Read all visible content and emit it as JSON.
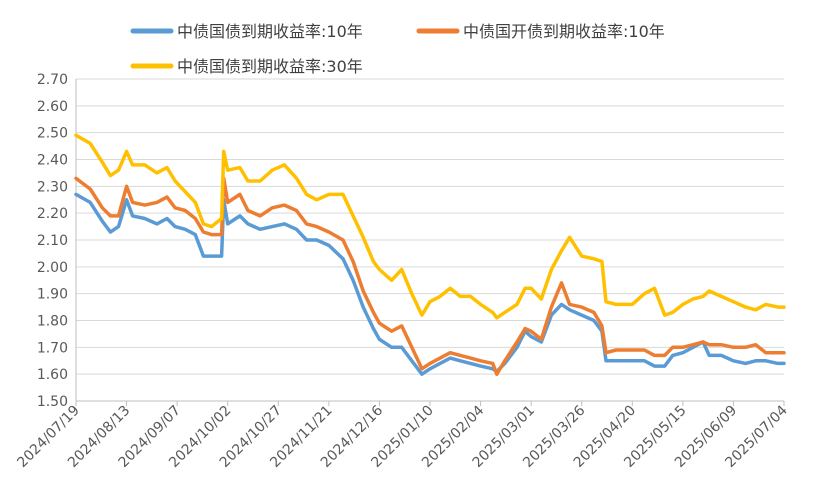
{
  "chart_data": {
    "type": "line",
    "title": "",
    "xlabel": "",
    "ylabel": "",
    "ylim": [
      1.5,
      2.7
    ],
    "yticks": [
      "2.70",
      "2.60",
      "2.50",
      "2.40",
      "2.30",
      "2.20",
      "2.10",
      "2.00",
      "1.90",
      "1.80",
      "1.70",
      "1.60",
      "1.50"
    ],
    "xticks": [
      "2024/07/19",
      "2024/08/13",
      "2024/09/07",
      "2024/10/02",
      "2024/10/27",
      "2024/11/21",
      "2024/12/16",
      "2025/01/10",
      "2025/02/04",
      "2025/03/01",
      "2025/03/26",
      "2025/04/20",
      "2025/05/15",
      "2025/06/09",
      "2025/07/04"
    ],
    "x_start": "2024/07/19",
    "x_end": "2025/07/04",
    "grid": "horizontal",
    "legend_position": "top",
    "series": [
      {
        "name": "中债国债到期收益率:10年",
        "color": "#5B9BD5",
        "points": [
          [
            "2024/07/19",
            2.27
          ],
          [
            "2024/07/26",
            2.24
          ],
          [
            "2024/08/01",
            2.17
          ],
          [
            "2024/08/05",
            2.13
          ],
          [
            "2024/08/09",
            2.15
          ],
          [
            "2024/08/13",
            2.25
          ],
          [
            "2024/08/16",
            2.19
          ],
          [
            "2024/08/22",
            2.18
          ],
          [
            "2024/08/28",
            2.16
          ],
          [
            "2024/09/02",
            2.18
          ],
          [
            "2024/09/06",
            2.15
          ],
          [
            "2024/09/11",
            2.14
          ],
          [
            "2024/09/16",
            2.12
          ],
          [
            "2024/09/20",
            2.04
          ],
          [
            "2024/09/24",
            2.04
          ],
          [
            "2024/09/29",
            2.04
          ],
          [
            "2024/09/30",
            2.25
          ],
          [
            "2024/10/02",
            2.16
          ],
          [
            "2024/10/08",
            2.19
          ],
          [
            "2024/10/12",
            2.16
          ],
          [
            "2024/10/18",
            2.14
          ],
          [
            "2024/10/24",
            2.15
          ],
          [
            "2024/10/30",
            2.16
          ],
          [
            "2024/11/05",
            2.14
          ],
          [
            "2024/11/10",
            2.1
          ],
          [
            "2024/11/15",
            2.1
          ],
          [
            "2024/11/21",
            2.08
          ],
          [
            "2024/11/28",
            2.03
          ],
          [
            "2024/12/03",
            1.95
          ],
          [
            "2024/12/08",
            1.85
          ],
          [
            "2024/12/13",
            1.77
          ],
          [
            "2024/12/16",
            1.73
          ],
          [
            "2024/12/22",
            1.7
          ],
          [
            "2024/12/27",
            1.7
          ],
          [
            "2025/01/01",
            1.65
          ],
          [
            "2025/01/06",
            1.6
          ],
          [
            "2025/01/10",
            1.62
          ],
          [
            "2025/01/15",
            1.64
          ],
          [
            "2025/01/20",
            1.66
          ],
          [
            "2025/01/25",
            1.65
          ],
          [
            "2025/01/30",
            1.64
          ],
          [
            "2025/02/04",
            1.63
          ],
          [
            "2025/02/10",
            1.62
          ],
          [
            "2025/02/12",
            1.61
          ],
          [
            "2025/02/16",
            1.64
          ],
          [
            "2025/02/22",
            1.7
          ],
          [
            "2025/02/26",
            1.76
          ],
          [
            "2025/03/01",
            1.74
          ],
          [
            "2025/03/06",
            1.72
          ],
          [
            "2025/03/11",
            1.82
          ],
          [
            "2025/03/16",
            1.86
          ],
          [
            "2025/03/20",
            1.84
          ],
          [
            "2025/03/26",
            1.82
          ],
          [
            "2025/04/01",
            1.8
          ],
          [
            "2025/04/05",
            1.76
          ],
          [
            "2025/04/07",
            1.65
          ],
          [
            "2025/04/12",
            1.65
          ],
          [
            "2025/04/20",
            1.65
          ],
          [
            "2025/04/26",
            1.65
          ],
          [
            "2025/05/01",
            1.63
          ],
          [
            "2025/05/06",
            1.63
          ],
          [
            "2025/05/10",
            1.67
          ],
          [
            "2025/05/15",
            1.68
          ],
          [
            "2025/05/20",
            1.7
          ],
          [
            "2025/05/25",
            1.72
          ],
          [
            "2025/05/28",
            1.67
          ],
          [
            "2025/06/03",
            1.67
          ],
          [
            "2025/06/09",
            1.65
          ],
          [
            "2025/06/15",
            1.64
          ],
          [
            "2025/06/20",
            1.65
          ],
          [
            "2025/06/25",
            1.65
          ],
          [
            "2025/07/01",
            1.64
          ],
          [
            "2025/07/04",
            1.64
          ]
        ]
      },
      {
        "name": "中债国开债到期收益率:10年",
        "color": "#ED7D31",
        "points": [
          [
            "2024/07/19",
            2.33
          ],
          [
            "2024/07/26",
            2.29
          ],
          [
            "2024/08/01",
            2.22
          ],
          [
            "2024/08/05",
            2.19
          ],
          [
            "2024/08/09",
            2.19
          ],
          [
            "2024/08/13",
            2.3
          ],
          [
            "2024/08/16",
            2.24
          ],
          [
            "2024/08/22",
            2.23
          ],
          [
            "2024/08/28",
            2.24
          ],
          [
            "2024/09/02",
            2.26
          ],
          [
            "2024/09/06",
            2.22
          ],
          [
            "2024/09/11",
            2.21
          ],
          [
            "2024/09/16",
            2.18
          ],
          [
            "2024/09/20",
            2.13
          ],
          [
            "2024/09/24",
            2.12
          ],
          [
            "2024/09/29",
            2.12
          ],
          [
            "2024/09/30",
            2.33
          ],
          [
            "2024/10/02",
            2.24
          ],
          [
            "2024/10/08",
            2.27
          ],
          [
            "2024/10/12",
            2.21
          ],
          [
            "2024/10/18",
            2.19
          ],
          [
            "2024/10/24",
            2.22
          ],
          [
            "2024/10/30",
            2.23
          ],
          [
            "2024/11/05",
            2.21
          ],
          [
            "2024/11/10",
            2.16
          ],
          [
            "2024/11/15",
            2.15
          ],
          [
            "2024/11/21",
            2.13
          ],
          [
            "2024/11/28",
            2.1
          ],
          [
            "2024/12/03",
            2.02
          ],
          [
            "2024/12/08",
            1.91
          ],
          [
            "2024/12/13",
            1.83
          ],
          [
            "2024/12/16",
            1.79
          ],
          [
            "2024/12/22",
            1.76
          ],
          [
            "2024/12/27",
            1.78
          ],
          [
            "2025/01/01",
            1.7
          ],
          [
            "2025/01/06",
            1.62
          ],
          [
            "2025/01/10",
            1.64
          ],
          [
            "2025/01/15",
            1.66
          ],
          [
            "2025/01/20",
            1.68
          ],
          [
            "2025/01/25",
            1.67
          ],
          [
            "2025/01/30",
            1.66
          ],
          [
            "2025/02/04",
            1.65
          ],
          [
            "2025/02/10",
            1.64
          ],
          [
            "2025/02/12",
            1.6
          ],
          [
            "2025/02/16",
            1.65
          ],
          [
            "2025/02/22",
            1.72
          ],
          [
            "2025/02/26",
            1.77
          ],
          [
            "2025/03/01",
            1.76
          ],
          [
            "2025/03/06",
            1.73
          ],
          [
            "2025/03/11",
            1.85
          ],
          [
            "2025/03/16",
            1.94
          ],
          [
            "2025/03/20",
            1.86
          ],
          [
            "2025/03/26",
            1.85
          ],
          [
            "2025/04/01",
            1.83
          ],
          [
            "2025/04/05",
            1.78
          ],
          [
            "2025/04/07",
            1.68
          ],
          [
            "2025/04/12",
            1.69
          ],
          [
            "2025/04/20",
            1.69
          ],
          [
            "2025/04/26",
            1.69
          ],
          [
            "2025/05/01",
            1.67
          ],
          [
            "2025/05/06",
            1.67
          ],
          [
            "2025/05/10",
            1.7
          ],
          [
            "2025/05/15",
            1.7
          ],
          [
            "2025/05/20",
            1.71
          ],
          [
            "2025/05/25",
            1.72
          ],
          [
            "2025/05/28",
            1.71
          ],
          [
            "2025/06/03",
            1.71
          ],
          [
            "2025/06/09",
            1.7
          ],
          [
            "2025/06/15",
            1.7
          ],
          [
            "2025/06/20",
            1.71
          ],
          [
            "2025/06/25",
            1.68
          ],
          [
            "2025/07/01",
            1.68
          ],
          [
            "2025/07/04",
            1.68
          ]
        ]
      },
      {
        "name": "中债国债到期收益率:30年",
        "color": "#FFC000",
        "points": [
          [
            "2024/07/19",
            2.49
          ],
          [
            "2024/07/26",
            2.46
          ],
          [
            "2024/08/01",
            2.39
          ],
          [
            "2024/08/05",
            2.34
          ],
          [
            "2024/08/09",
            2.36
          ],
          [
            "2024/08/13",
            2.43
          ],
          [
            "2024/08/16",
            2.38
          ],
          [
            "2024/08/22",
            2.38
          ],
          [
            "2024/08/28",
            2.35
          ],
          [
            "2024/09/02",
            2.37
          ],
          [
            "2024/09/06",
            2.32
          ],
          [
            "2024/09/11",
            2.28
          ],
          [
            "2024/09/16",
            2.24
          ],
          [
            "2024/09/20",
            2.16
          ],
          [
            "2024/09/24",
            2.15
          ],
          [
            "2024/09/29",
            2.18
          ],
          [
            "2024/09/30",
            2.43
          ],
          [
            "2024/10/02",
            2.36
          ],
          [
            "2024/10/08",
            2.37
          ],
          [
            "2024/10/12",
            2.32
          ],
          [
            "2024/10/18",
            2.32
          ],
          [
            "2024/10/24",
            2.36
          ],
          [
            "2024/10/30",
            2.38
          ],
          [
            "2024/11/05",
            2.33
          ],
          [
            "2024/11/10",
            2.27
          ],
          [
            "2024/11/15",
            2.25
          ],
          [
            "2024/11/21",
            2.27
          ],
          [
            "2024/11/28",
            2.27
          ],
          [
            "2024/12/03",
            2.19
          ],
          [
            "2024/12/08",
            2.11
          ],
          [
            "2024/12/13",
            2.02
          ],
          [
            "2024/12/16",
            1.99
          ],
          [
            "2024/12/22",
            1.95
          ],
          [
            "2024/12/27",
            1.99
          ],
          [
            "2025/01/01",
            1.9
          ],
          [
            "2025/01/06",
            1.82
          ],
          [
            "2025/01/10",
            1.87
          ],
          [
            "2025/01/15",
            1.89
          ],
          [
            "2025/01/20",
            1.92
          ],
          [
            "2025/01/25",
            1.89
          ],
          [
            "2025/01/30",
            1.89
          ],
          [
            "2025/02/04",
            1.86
          ],
          [
            "2025/02/10",
            1.83
          ],
          [
            "2025/02/12",
            1.81
          ],
          [
            "2025/02/16",
            1.83
          ],
          [
            "2025/02/22",
            1.86
          ],
          [
            "2025/02/26",
            1.92
          ],
          [
            "2025/03/01",
            1.92
          ],
          [
            "2025/03/06",
            1.88
          ],
          [
            "2025/03/11",
            1.99
          ],
          [
            "2025/03/16",
            2.06
          ],
          [
            "2025/03/20",
            2.11
          ],
          [
            "2025/03/26",
            2.04
          ],
          [
            "2025/04/01",
            2.03
          ],
          [
            "2025/04/05",
            2.02
          ],
          [
            "2025/04/07",
            1.87
          ],
          [
            "2025/04/12",
            1.86
          ],
          [
            "2025/04/20",
            1.86
          ],
          [
            "2025/04/26",
            1.9
          ],
          [
            "2025/05/01",
            1.92
          ],
          [
            "2025/05/06",
            1.82
          ],
          [
            "2025/05/10",
            1.83
          ],
          [
            "2025/05/15",
            1.86
          ],
          [
            "2025/05/20",
            1.88
          ],
          [
            "2025/05/25",
            1.89
          ],
          [
            "2025/05/28",
            1.91
          ],
          [
            "2025/06/03",
            1.89
          ],
          [
            "2025/06/09",
            1.87
          ],
          [
            "2025/06/15",
            1.85
          ],
          [
            "2025/06/20",
            1.84
          ],
          [
            "2025/06/25",
            1.86
          ],
          [
            "2025/07/01",
            1.85
          ],
          [
            "2025/07/04",
            1.85
          ]
        ]
      }
    ]
  }
}
